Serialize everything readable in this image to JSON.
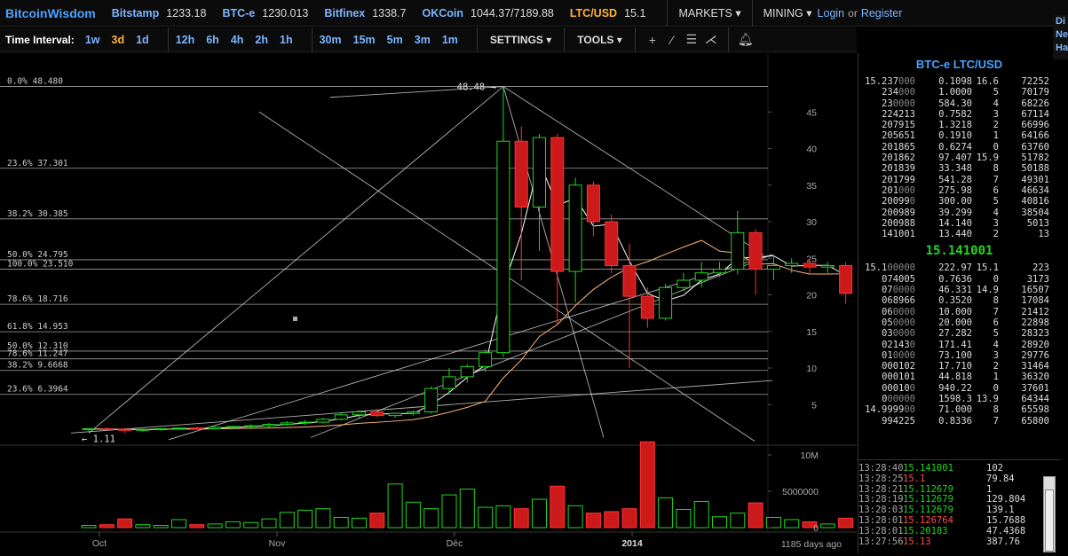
{
  "brand": "BitcoinWisdom",
  "tickers": [
    {
      "name": "Bitstamp",
      "value": "1233.18"
    },
    {
      "name": "BTC-e",
      "value": "1230.013"
    },
    {
      "name": "Bitfinex",
      "value": "1338.7"
    },
    {
      "name": "OKCoin",
      "value": "1044.37/7189.88"
    },
    {
      "name": "LTC/USD",
      "value": "15.1"
    }
  ],
  "nav": {
    "markets": "MARKETS",
    "mining": "MINING",
    "login": "Login",
    "or": "or",
    "register": "Register"
  },
  "edge_links": [
    "Di",
    "Ne",
    "Ha"
  ],
  "toolbar": {
    "label": "Time Interval:",
    "intervals_a": [
      "1w",
      "3d",
      "1d"
    ],
    "intervals_b": [
      "12h",
      "6h",
      "4h",
      "2h",
      "1h"
    ],
    "intervals_c": [
      "30m",
      "15m",
      "5m",
      "3m",
      "1m"
    ],
    "active_interval": "3d",
    "settings": "SETTINGS",
    "tools": "TOOLS"
  },
  "chart_data": {
    "type": "candlestick",
    "x_ticks": [
      "Oct",
      "Nov",
      "Déc",
      "2014"
    ],
    "y_ticks": [
      5,
      10,
      15,
      20,
      25,
      30,
      35,
      40,
      45
    ],
    "vol_ticks": [
      "10M",
      "5000000",
      "0"
    ],
    "footer": "1185 days ago",
    "high_label": "48.48",
    "low_label": "1.11",
    "fib_levels": [
      {
        "label": "0.0% 48.480",
        "value": 48.48
      },
      {
        "label": "23.6% 37.301",
        "value": 37.301
      },
      {
        "label": "38.2% 30.385",
        "value": 30.385
      },
      {
        "label": "50.0% 24.795",
        "value": 24.795
      },
      {
        "label": "100.0% 23.510",
        "value": 23.51
      },
      {
        "label": "78.6% 18.716",
        "value": 18.716
      },
      {
        "label": "61.8% 14.953",
        "value": 14.953
      },
      {
        "label": "50.0% 12.310",
        "value": 12.31
      },
      {
        "label": "78.6% 11.247",
        "value": 11.247
      },
      {
        "label": "38.2% 9.6668",
        "value": 9.6668
      },
      {
        "label": "23.6% 6.3964",
        "value": 6.3964
      }
    ],
    "candles": [
      {
        "o": 1.6,
        "h": 1.8,
        "l": 1.4,
        "c": 1.7
      },
      {
        "o": 1.7,
        "h": 1.9,
        "l": 1.5,
        "c": 1.6
      },
      {
        "o": 1.6,
        "h": 1.8,
        "l": 1.1,
        "c": 1.5
      },
      {
        "o": 1.5,
        "h": 1.7,
        "l": 1.3,
        "c": 1.6
      },
      {
        "o": 1.6,
        "h": 1.8,
        "l": 1.4,
        "c": 1.7
      },
      {
        "o": 1.7,
        "h": 1.9,
        "l": 1.6,
        "c": 1.8
      },
      {
        "o": 1.8,
        "h": 2.0,
        "l": 1.6,
        "c": 1.7
      },
      {
        "o": 1.7,
        "h": 2.0,
        "l": 1.6,
        "c": 1.9
      },
      {
        "o": 1.9,
        "h": 2.1,
        "l": 1.7,
        "c": 2.0
      },
      {
        "o": 2.0,
        "h": 2.3,
        "l": 1.8,
        "c": 2.1
      },
      {
        "o": 2.1,
        "h": 2.5,
        "l": 1.9,
        "c": 2.3
      },
      {
        "o": 2.3,
        "h": 2.7,
        "l": 2.1,
        "c": 2.5
      },
      {
        "o": 2.5,
        "h": 2.9,
        "l": 2.2,
        "c": 2.6
      },
      {
        "o": 2.6,
        "h": 3.2,
        "l": 2.4,
        "c": 3.0
      },
      {
        "o": 3.0,
        "h": 3.8,
        "l": 2.8,
        "c": 3.6
      },
      {
        "o": 3.6,
        "h": 4.2,
        "l": 3.1,
        "c": 4.0
      },
      {
        "o": 4.0,
        "h": 4.4,
        "l": 3.3,
        "c": 3.5
      },
      {
        "o": 3.5,
        "h": 3.9,
        "l": 3.2,
        "c": 3.8
      },
      {
        "o": 3.8,
        "h": 4.2,
        "l": 3.5,
        "c": 4.0
      },
      {
        "o": 4.0,
        "h": 7.5,
        "l": 3.8,
        "c": 7.2
      },
      {
        "o": 7.2,
        "h": 10.0,
        "l": 6.5,
        "c": 8.8
      },
      {
        "o": 8.8,
        "h": 10.5,
        "l": 8.0,
        "c": 10.2
      },
      {
        "o": 10.2,
        "h": 12.5,
        "l": 9.5,
        "c": 12.1
      },
      {
        "o": 12.1,
        "h": 48.48,
        "l": 11.5,
        "c": 41.0
      },
      {
        "o": 41.0,
        "h": 43.0,
        "l": 22.0,
        "c": 32.0
      },
      {
        "o": 32.0,
        "h": 42.0,
        "l": 26.0,
        "c": 41.5
      },
      {
        "o": 41.5,
        "h": 42.0,
        "l": 16.0,
        "c": 23.2
      },
      {
        "o": 23.2,
        "h": 36.0,
        "l": 19.0,
        "c": 35.0
      },
      {
        "o": 35.0,
        "h": 35.5,
        "l": 28.0,
        "c": 30.0
      },
      {
        "o": 30.0,
        "h": 31.0,
        "l": 23.0,
        "c": 24.0
      },
      {
        "o": 24.0,
        "h": 27.0,
        "l": 10.0,
        "c": 19.8
      },
      {
        "o": 19.8,
        "h": 21.0,
        "l": 15.5,
        "c": 16.8
      },
      {
        "o": 16.8,
        "h": 21.5,
        "l": 16.5,
        "c": 21.0
      },
      {
        "o": 21.0,
        "h": 23.0,
        "l": 20.5,
        "c": 22.0
      },
      {
        "o": 22.0,
        "h": 24.5,
        "l": 21.0,
        "c": 23.0
      },
      {
        "o": 23.0,
        "h": 24.5,
        "l": 22.5,
        "c": 23.5
      },
      {
        "o": 23.5,
        "h": 31.5,
        "l": 22.8,
        "c": 28.5
      },
      {
        "o": 28.5,
        "h": 29.0,
        "l": 20.0,
        "c": 23.5
      },
      {
        "o": 23.5,
        "h": 25.5,
        "l": 22.0,
        "c": 24.0
      },
      {
        "o": 24.0,
        "h": 25.0,
        "l": 23.0,
        "c": 24.3
      },
      {
        "o": 24.3,
        "h": 25.0,
        "l": 23.0,
        "c": 23.8
      },
      {
        "o": 23.8,
        "h": 24.5,
        "l": 23.0,
        "c": 24.0
      },
      {
        "o": 24.0,
        "h": 24.5,
        "l": 18.8,
        "c": 20.2
      }
    ],
    "volumes_millions": [
      0.3,
      0.4,
      1.2,
      0.4,
      0.3,
      1.1,
      0.4,
      0.5,
      0.8,
      0.7,
      1.2,
      2.1,
      2.4,
      2.6,
      1.4,
      1.3,
      2.0,
      6.0,
      3.5,
      2.6,
      4.5,
      5.3,
      2.8,
      3.0,
      2.6,
      3.9,
      5.7,
      3.0,
      2.0,
      2.2,
      2.6,
      11.8,
      4.1,
      2.5,
      3.6,
      1.5,
      2.0,
      3.4,
      1.4,
      1.1,
      0.8,
      0.5,
      1.3
    ]
  },
  "panel": {
    "title": "BTC-e LTC/USD",
    "asks": [
      [
        "15.237",
        "000",
        "0.1098",
        "16.6",
        "72252"
      ],
      [
        "234",
        "000",
        "1.0000",
        "5",
        "70179"
      ],
      [
        "23",
        "0000",
        "584.30",
        "4",
        "68226"
      ],
      [
        "224213",
        "",
        "0.7582",
        "3",
        "67114"
      ],
      [
        "207915",
        "",
        "1.3218",
        "2",
        "66996"
      ],
      [
        "205651",
        "",
        "0.1910",
        "1",
        "64166"
      ],
      [
        "201865",
        "",
        "0.6274",
        "0",
        "63760"
      ],
      [
        "201862",
        "",
        "97.407",
        "15.9",
        "51782"
      ],
      [
        "201839",
        "",
        "33.348",
        "8",
        "50188"
      ],
      [
        "201799",
        "",
        "541.28",
        "7",
        "49301"
      ],
      [
        "201",
        "000",
        "275.98",
        "6",
        "46634"
      ],
      [
        "20099",
        "0",
        "300.00",
        "5",
        "40816"
      ],
      [
        "200989",
        "",
        "39.299",
        "4",
        "38504"
      ],
      [
        "200988",
        "",
        "14.140",
        "3",
        "5013"
      ],
      [
        "141001",
        "",
        "13.440",
        "2",
        "13"
      ]
    ],
    "mid": "15.141001",
    "bids": [
      [
        "15.1",
        "00000",
        "222.97",
        "15.1",
        "223"
      ],
      [
        "074005",
        "",
        "0.7636",
        "0",
        "3173"
      ],
      [
        "07",
        "0000",
        "46.331",
        "14.9",
        "16507"
      ],
      [
        "068966",
        "",
        "0.3520",
        "8",
        "17084"
      ],
      [
        "06",
        "0000",
        "10.000",
        "7",
        "21412"
      ],
      [
        "05",
        "0000",
        "20.000",
        "6",
        "22898"
      ],
      [
        "03",
        "0000",
        "27.282",
        "5",
        "28323"
      ],
      [
        "02143",
        "0",
        "171.41",
        "4",
        "28920"
      ],
      [
        "01",
        "0000",
        "73.100",
        "3",
        "29776"
      ],
      [
        "000102",
        "",
        "17.710",
        "2",
        "31464"
      ],
      [
        "000101",
        "",
        "44.818",
        "1",
        "36320"
      ],
      [
        "00010",
        "0",
        "940.22",
        "0",
        "37601"
      ],
      [
        "0",
        "00000",
        "1598.3",
        "13.9",
        "64344"
      ],
      [
        "14.9999",
        "00",
        "71.000",
        "8",
        "65598"
      ],
      [
        "994225",
        "",
        "0.8336",
        "7",
        "65800"
      ]
    ],
    "trades": [
      {
        "time": "13:28:40",
        "price": "15.141001",
        "amount": "102",
        "dir": "up"
      },
      {
        "time": "13:28:25",
        "price": "15.1",
        "amount": "79.84",
        "dir": "down"
      },
      {
        "time": "13:28:21",
        "price": "15.112679",
        "amount": "1",
        "dir": "up"
      },
      {
        "time": "13:28:19",
        "price": "15.112679",
        "amount": "129.804",
        "dir": "up"
      },
      {
        "time": "13:28:03",
        "price": "15.112679",
        "amount": "139.1",
        "dir": "up"
      },
      {
        "time": "13:28:01",
        "price": "15.126764",
        "amount": "15.7688",
        "dir": "down"
      },
      {
        "time": "13:28:01",
        "price": "15.20183",
        "amount": "47.4368",
        "dir": "up"
      },
      {
        "time": "13:27:56",
        "price": "15.13",
        "amount": "387.76",
        "dir": "down"
      }
    ]
  },
  "colors": {
    "up": "#1ed81e",
    "down": "#cc1a1a",
    "accent": "#4aa3ff",
    "active": "#ffb33a"
  }
}
